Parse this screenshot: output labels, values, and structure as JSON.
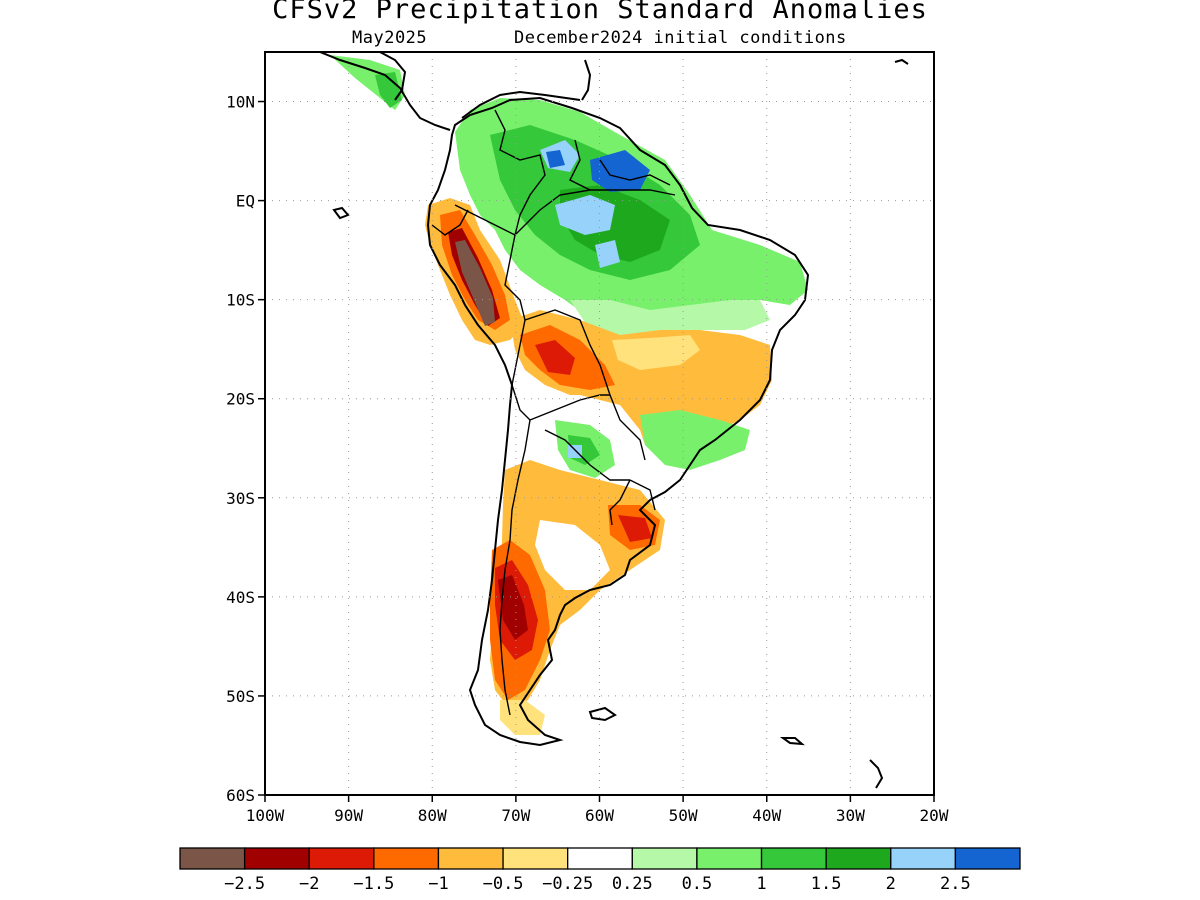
{
  "title": "CFSv2 Precipitation Standard Anomalies",
  "subtitle_left": "May2025",
  "subtitle_right": "December2024 initial conditions",
  "map": {
    "lon_range": [
      -100,
      -20
    ],
    "lat_range": [
      -60,
      15
    ],
    "lat_ticks": [
      {
        "value": 10,
        "label": "10N"
      },
      {
        "value": 0,
        "label": "EQ"
      },
      {
        "value": -10,
        "label": "10S"
      },
      {
        "value": -20,
        "label": "20S"
      },
      {
        "value": -30,
        "label": "30S"
      },
      {
        "value": -40,
        "label": "40S"
      },
      {
        "value": -50,
        "label": "50S"
      },
      {
        "value": -60,
        "label": "60S"
      }
    ],
    "lon_ticks": [
      {
        "value": -100,
        "label": "100W"
      },
      {
        "value": -90,
        "label": "90W"
      },
      {
        "value": -80,
        "label": "80W"
      },
      {
        "value": -70,
        "label": "70W"
      },
      {
        "value": -60,
        "label": "60W"
      },
      {
        "value": -50,
        "label": "50W"
      },
      {
        "value": -40,
        "label": "40W"
      },
      {
        "value": -30,
        "label": "30W"
      },
      {
        "value": -20,
        "label": "20W"
      }
    ],
    "grid": "dotted"
  },
  "colorbar": {
    "colors": [
      "#7a5548",
      "#a10000",
      "#dc1a05",
      "#ff6a00",
      "#ffbc3c",
      "#ffe27c",
      "#ffffff",
      "#b4f8a8",
      "#78f06c",
      "#35c83a",
      "#1ea81e",
      "#96d2fa",
      "#1464d2"
    ],
    "labels": [
      "−2.5",
      "−2",
      "−1.5",
      "−1",
      "−0.5",
      "−0.25",
      "0.25",
      "0.5",
      "1",
      "1.5",
      "2",
      "2.5"
    ]
  }
}
